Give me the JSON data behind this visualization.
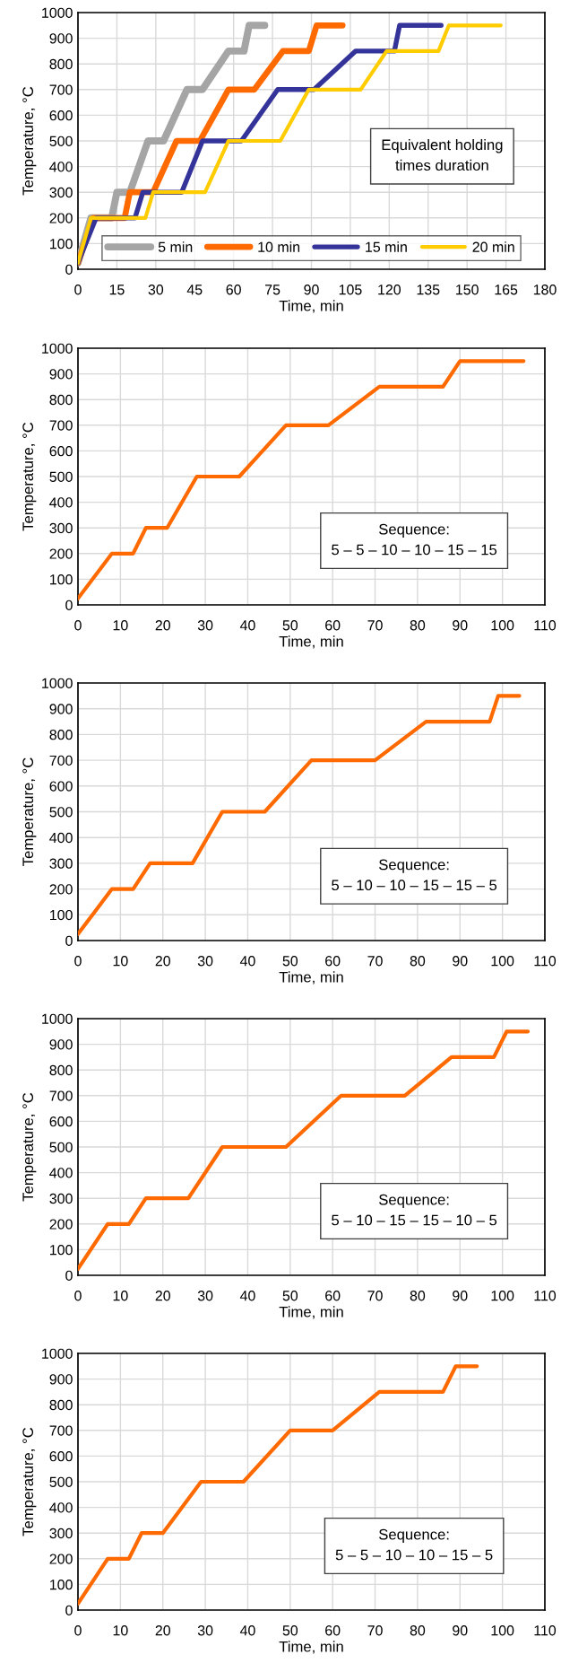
{
  "chart_data": [
    {
      "type": "line",
      "xlabel": "Time, min",
      "ylabel": "Temperature, °C",
      "xlim": [
        0,
        180
      ],
      "xticks": [
        0,
        15,
        30,
        45,
        60,
        75,
        90,
        105,
        120,
        135,
        150,
        165,
        180
      ],
      "ylim": [
        0,
        1000
      ],
      "yticks": [
        0,
        100,
        200,
        300,
        400,
        500,
        600,
        700,
        800,
        900,
        1000
      ],
      "grid": true,
      "legend": "bottom",
      "annotations": [
        "Equivalent holding\ntimes duration"
      ],
      "series": [
        {
          "name": "5 min",
          "color": "#a5a5a5",
          "x": [
            0,
            5,
            13,
            15,
            20,
            27,
            33,
            42,
            48,
            58,
            64,
            66,
            72
          ],
          "values": [
            25,
            200,
            200,
            300,
            300,
            500,
            500,
            700,
            700,
            850,
            850,
            950,
            950
          ]
        },
        {
          "name": "10 min",
          "color": "#ff6a00",
          "x": [
            0,
            6,
            18,
            20,
            29,
            38,
            47,
            58,
            68,
            79,
            89,
            92,
            102
          ],
          "values": [
            25,
            200,
            200,
            300,
            300,
            500,
            500,
            700,
            700,
            850,
            850,
            950,
            950
          ]
        },
        {
          "name": "15 min",
          "color": "#333399",
          "x": [
            0,
            7,
            22,
            25,
            40,
            48,
            63,
            77,
            91,
            107,
            122,
            124,
            140
          ],
          "values": [
            25,
            200,
            200,
            300,
            300,
            500,
            500,
            700,
            700,
            850,
            850,
            950,
            950
          ]
        },
        {
          "name": "20 min",
          "color": "#ffcc00",
          "x": [
            0,
            5,
            26,
            29,
            49,
            58,
            78,
            89,
            109,
            119,
            139,
            143,
            163
          ],
          "values": [
            25,
            200,
            200,
            300,
            300,
            500,
            500,
            700,
            700,
            850,
            850,
            950,
            950
          ]
        }
      ]
    },
    {
      "type": "line",
      "xlabel": "Time, min",
      "ylabel": "Temperature, °C",
      "xlim": [
        0,
        110
      ],
      "xticks": [
        0,
        10,
        20,
        30,
        40,
        50,
        60,
        70,
        80,
        90,
        100,
        110
      ],
      "ylim": [
        0,
        1000
      ],
      "yticks": [
        0,
        100,
        200,
        300,
        400,
        500,
        600,
        700,
        800,
        900,
        1000
      ],
      "grid": true,
      "annotations": [
        "Sequence:\n5 – 5 – 10 – 10 – 15 – 15"
      ],
      "series": [
        {
          "color": "#ff6a00",
          "x": [
            0,
            8,
            13,
            16,
            21,
            28,
            38,
            49,
            59,
            71,
            86,
            90,
            105
          ],
          "values": [
            25,
            200,
            200,
            300,
            300,
            500,
            500,
            700,
            700,
            850,
            850,
            950,
            950
          ]
        }
      ]
    },
    {
      "type": "line",
      "xlabel": "Time, min",
      "ylabel": "Temperature, °C",
      "xlim": [
        0,
        110
      ],
      "xticks": [
        0,
        10,
        20,
        30,
        40,
        50,
        60,
        70,
        80,
        90,
        100,
        110
      ],
      "ylim": [
        0,
        1000
      ],
      "yticks": [
        0,
        100,
        200,
        300,
        400,
        500,
        600,
        700,
        800,
        900,
        1000
      ],
      "grid": true,
      "annotations": [
        "Sequence:\n5 – 10 – 10 – 15 – 15 – 5"
      ],
      "series": [
        {
          "color": "#ff6a00",
          "x": [
            0,
            8,
            13,
            17,
            27,
            34,
            44,
            55,
            70,
            82,
            97,
            99,
            104
          ],
          "values": [
            25,
            200,
            200,
            300,
            300,
            500,
            500,
            700,
            700,
            850,
            850,
            950,
            950
          ]
        }
      ]
    },
    {
      "type": "line",
      "xlabel": "Time, min",
      "ylabel": "Temperature, °C",
      "xlim": [
        0,
        110
      ],
      "xticks": [
        0,
        10,
        20,
        30,
        40,
        50,
        60,
        70,
        80,
        90,
        100,
        110
      ],
      "ylim": [
        0,
        1000
      ],
      "yticks": [
        0,
        100,
        200,
        300,
        400,
        500,
        600,
        700,
        800,
        900,
        1000
      ],
      "grid": true,
      "annotations": [
        "Sequence:\n5 – 10 – 15 – 15 – 10 – 5"
      ],
      "series": [
        {
          "color": "#ff6a00",
          "x": [
            0,
            7,
            12,
            16,
            26,
            34,
            49,
            62,
            77,
            88,
            98,
            101,
            106
          ],
          "values": [
            25,
            200,
            200,
            300,
            300,
            500,
            500,
            700,
            700,
            850,
            850,
            950,
            950
          ]
        }
      ]
    },
    {
      "type": "line",
      "xlabel": "Time, min",
      "ylabel": "Temperature, °C",
      "xlim": [
        0,
        110
      ],
      "xticks": [
        0,
        10,
        20,
        30,
        40,
        50,
        60,
        70,
        80,
        90,
        100,
        110
      ],
      "ylim": [
        0,
        1000
      ],
      "yticks": [
        0,
        100,
        200,
        300,
        400,
        500,
        600,
        700,
        800,
        900,
        1000
      ],
      "grid": true,
      "annotations": [
        "Sequence:\n5 – 5 – 10 – 10 – 15 – 5"
      ],
      "series": [
        {
          "color": "#ff6a00",
          "x": [
            0,
            7,
            12,
            15,
            20,
            29,
            39,
            50,
            60,
            71,
            86,
            89,
            94
          ],
          "values": [
            25,
            200,
            200,
            300,
            300,
            500,
            500,
            700,
            700,
            850,
            850,
            950,
            950
          ]
        }
      ]
    }
  ]
}
